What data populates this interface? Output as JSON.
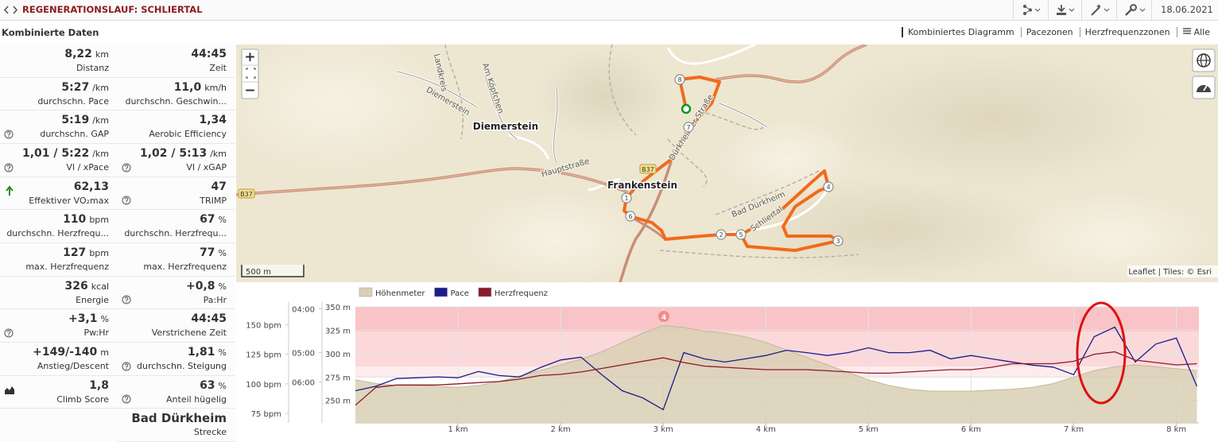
{
  "header": {
    "title": "REGENERATIONSLAUF: SCHLIERTAL",
    "date": "18.06.2021"
  },
  "section_title": "Kombinierte Daten",
  "tabs": [
    "Kombiniertes Diagramm",
    "Pacezonen",
    "Herzfrequenzzonen",
    "Alle"
  ],
  "stats": [
    {
      "left": {
        "value": "8,22",
        "unit": "km",
        "label": "Distanz"
      },
      "right": {
        "value": "44:45",
        "label": "Zeit"
      }
    },
    {
      "left": {
        "value": "5:27",
        "unit": "/km",
        "label": "durchschn. Pace"
      },
      "right": {
        "value": "11,0",
        "unit": "km/h",
        "label": "durchschn. Geschwin..."
      }
    },
    {
      "left": {
        "value": "5:19",
        "unit": "/km",
        "label": "durchschn. GAP",
        "info": true
      },
      "right": {
        "value": "1,34",
        "label": "Aerobic Efficiency"
      }
    },
    {
      "left": {
        "value": "1,01 / 5:22",
        "unit": "/km",
        "label": "VI / xPace",
        "info": true
      },
      "right": {
        "value": "1,02 / 5:13",
        "unit": "/km",
        "label": "VI / xGAP",
        "info": true
      }
    },
    {
      "left": {
        "value": "62,13",
        "label": "Effektiver VO₂max",
        "icon": "trend-up"
      },
      "right": {
        "value": "47",
        "label": "TRIMP",
        "info": true
      }
    },
    {
      "left": {
        "value": "110",
        "unit": "bpm",
        "label": "durchschn. Herzfrequ..."
      },
      "right": {
        "value": "67",
        "unit": "%",
        "label": "durchschn. Herzfrequ..."
      }
    },
    {
      "left": {
        "value": "127",
        "unit": "bpm",
        "label": "max. Herzfrequenz"
      },
      "right": {
        "value": "77",
        "unit": "%",
        "label": "max. Herzfrequenz"
      }
    },
    {
      "left": {
        "value": "326",
        "unit": "kcal",
        "label": "Energie"
      },
      "right": {
        "value": "+0,8",
        "unit": "%",
        "label": "Pa:Hr",
        "info": true
      }
    },
    {
      "left": {
        "value": "+3,1",
        "unit": "%",
        "label": "Pw:Hr",
        "info": true
      },
      "right": {
        "value": "44:45",
        "label": "Verstrichene Zeit"
      }
    },
    {
      "left": {
        "value": "+149/-140",
        "unit": "m",
        "label": "Anstieg/Descent"
      },
      "right": {
        "value": "1,81",
        "unit": "%",
        "label": "durchschn. Steigung",
        "info": true
      }
    },
    {
      "left": {
        "value": "1,8",
        "label": "Climb Score",
        "icon": "climb"
      },
      "right": {
        "value": "63",
        "unit": "%",
        "label": "Anteil hügelig",
        "info": true
      }
    },
    {
      "right": {
        "value": "Bad Dürkheim",
        "label": "Strecke"
      }
    }
  ],
  "map": {
    "zoom_in": "+",
    "zoom_out": "−",
    "labels": [
      "Diemerstein",
      "Frankenstein",
      "Diemerstein",
      "Am Köpfchen",
      "Landkreis",
      "Hauptstraße",
      "Bad Dürkheim",
      "Schliertal",
      "Dürkheimer Straße",
      "B37",
      "B37"
    ],
    "markers": [
      "1",
      "2",
      "3",
      "4",
      "5",
      "6",
      "7",
      "8"
    ],
    "scale": "500 m",
    "attribution": "Leaflet | Tiles: © Esri"
  },
  "chart_data": {
    "type": "line",
    "annotation": "4",
    "x": [
      0,
      0.2,
      0.4,
      0.6,
      0.8,
      1,
      1.2,
      1.4,
      1.6,
      1.8,
      2,
      2.2,
      2.4,
      2.6,
      2.8,
      3,
      3.2,
      3.4,
      3.6,
      3.8,
      4,
      4.2,
      4.4,
      4.6,
      4.8,
      5,
      5.2,
      5.4,
      5.6,
      5.8,
      6,
      6.2,
      6.4,
      6.6,
      6.8,
      7,
      7.2,
      7.4,
      7.6,
      7.8,
      8,
      8.2
    ],
    "xlim": [
      0,
      8.22
    ],
    "xticks": [
      {
        "value": 1,
        "label": "1 km"
      },
      {
        "value": 2,
        "label": "2 km"
      },
      {
        "value": 3,
        "label": "3 km"
      },
      {
        "value": 4,
        "label": "4 km"
      },
      {
        "value": 5,
        "label": "5 km"
      },
      {
        "value": 6,
        "label": "6 km"
      },
      {
        "value": 7,
        "label": "7 km"
      },
      {
        "value": 8,
        "label": "8 km"
      }
    ],
    "ylim": [
      226,
      350
    ],
    "yticks": [
      {
        "value": 250,
        "label": "250 m"
      },
      {
        "value": 275,
        "label": "275 m"
      },
      {
        "value": 300,
        "label": "300 m"
      },
      {
        "value": 325,
        "label": "325 m"
      },
      {
        "value": 350,
        "label": "350 m"
      }
    ],
    "y2lim": [
      67,
      165
    ],
    "y2ticks": [
      {
        "value": 75,
        "label": "75 bpm"
      },
      {
        "value": 100,
        "label": "100 bpm"
      },
      {
        "value": 125,
        "label": "125 bpm"
      },
      {
        "value": 150,
        "label": "150 bpm"
      }
    ],
    "y3lim": [
      238,
      500
    ],
    "y3scale": "reciprocal",
    "y3ticks": [
      {
        "value": 240,
        "label": "04:00"
      },
      {
        "value": 300,
        "label": "05:00"
      },
      {
        "value": 360,
        "label": "06:00"
      }
    ],
    "grid": true,
    "series": [
      {
        "name": "Höhenmeter",
        "color": "#d9cfb4",
        "axis": "y",
        "fill": true,
        "values": [
          272,
          268,
          266,
          266,
          265,
          264,
          266,
          270,
          276,
          282,
          288,
          294,
          302,
          312,
          322,
          330,
          328,
          324,
          322,
          318,
          312,
          304,
          296,
          288,
          280,
          272,
          266,
          262,
          260,
          260,
          260,
          261,
          262,
          264,
          268,
          275,
          282,
          286,
          288,
          286,
          284,
          282
        ]
      },
      {
        "name": "Pace",
        "color": "#1c1c8a",
        "axis": "y3",
        "values": [
          383,
          371,
          352,
          350,
          348,
          350,
          336,
          345,
          348,
          328,
          313,
          308,
          343,
          383,
          404,
          444,
          300,
          311,
          317,
          311,
          305,
          296,
          300,
          305,
          300,
          292,
          300,
          300,
          296,
          311,
          305,
          311,
          317,
          323,
          327,
          343,
          275,
          262,
          317,
          286,
          277,
          371
        ]
      },
      {
        "name": "Herzfrequenz",
        "color": "#8c1a2c",
        "axis": "y2",
        "values": [
          82,
          97,
          99,
          99,
          99,
          100,
          101,
          102,
          104,
          107,
          108,
          110,
          113,
          116,
          119,
          122,
          118,
          115,
          114,
          113,
          112,
          112,
          112,
          111,
          110,
          109,
          109,
          110,
          111,
          112,
          112,
          114,
          117,
          117,
          117,
          119,
          125,
          127,
          120,
          118,
          116,
          117
        ]
      }
    ]
  }
}
